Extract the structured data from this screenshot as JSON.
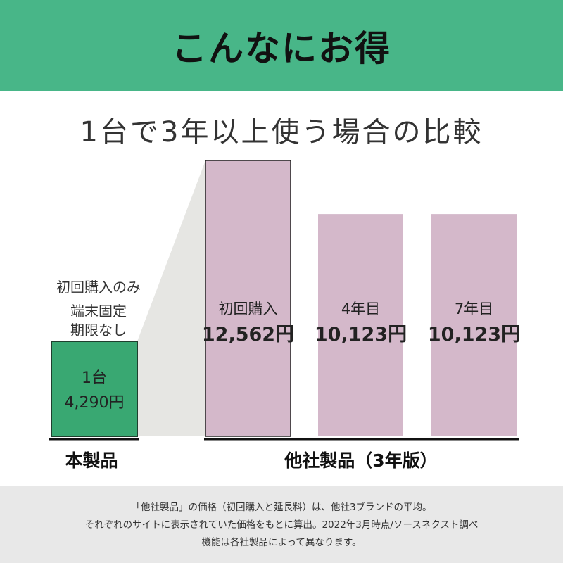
{
  "banner": {
    "title": "こんなにお得"
  },
  "subtitle": "1台で3年以上使う場合の比較",
  "colors": {
    "banner": "#48b688",
    "own_bar": "#39a872",
    "other_bar": "#d4b8ca",
    "shadow": "#e6e6e3",
    "footer_bg": "#e8e8e8"
  },
  "own_note": [
    "初回購入のみ",
    "端末固定",
    "期限なし"
  ],
  "chart_data": {
    "type": "bar",
    "unit": "円",
    "bars": [
      {
        "group": "本製品",
        "label": "1台",
        "value_text": "4,290円",
        "value": 4290,
        "color": "#39a872"
      },
      {
        "group": "他社製品（3年版）",
        "label": "初回購入",
        "value_text": "12,562円",
        "value": 12562,
        "color": "#d4b8ca"
      },
      {
        "group": "他社製品（3年版）",
        "label": "4年目",
        "value_text": "10,123円",
        "value": 10123,
        "color": "#d4b8ca"
      },
      {
        "group": "他社製品（3年版）",
        "label": "7年目",
        "value_text": "10,123円",
        "value": 10123,
        "color": "#d4b8ca"
      }
    ],
    "groups": [
      "本製品",
      "他社製品（3年版）"
    ]
  },
  "footer": {
    "lines": [
      "「他社製品」の価格（初回購入と延長料）は、他社3ブランドの平均。",
      "それぞれのサイトに表示されていた価格をもとに算出。2022年3月時点/ソースネクスト調べ",
      "機能は各社製品によって異なります。"
    ]
  }
}
